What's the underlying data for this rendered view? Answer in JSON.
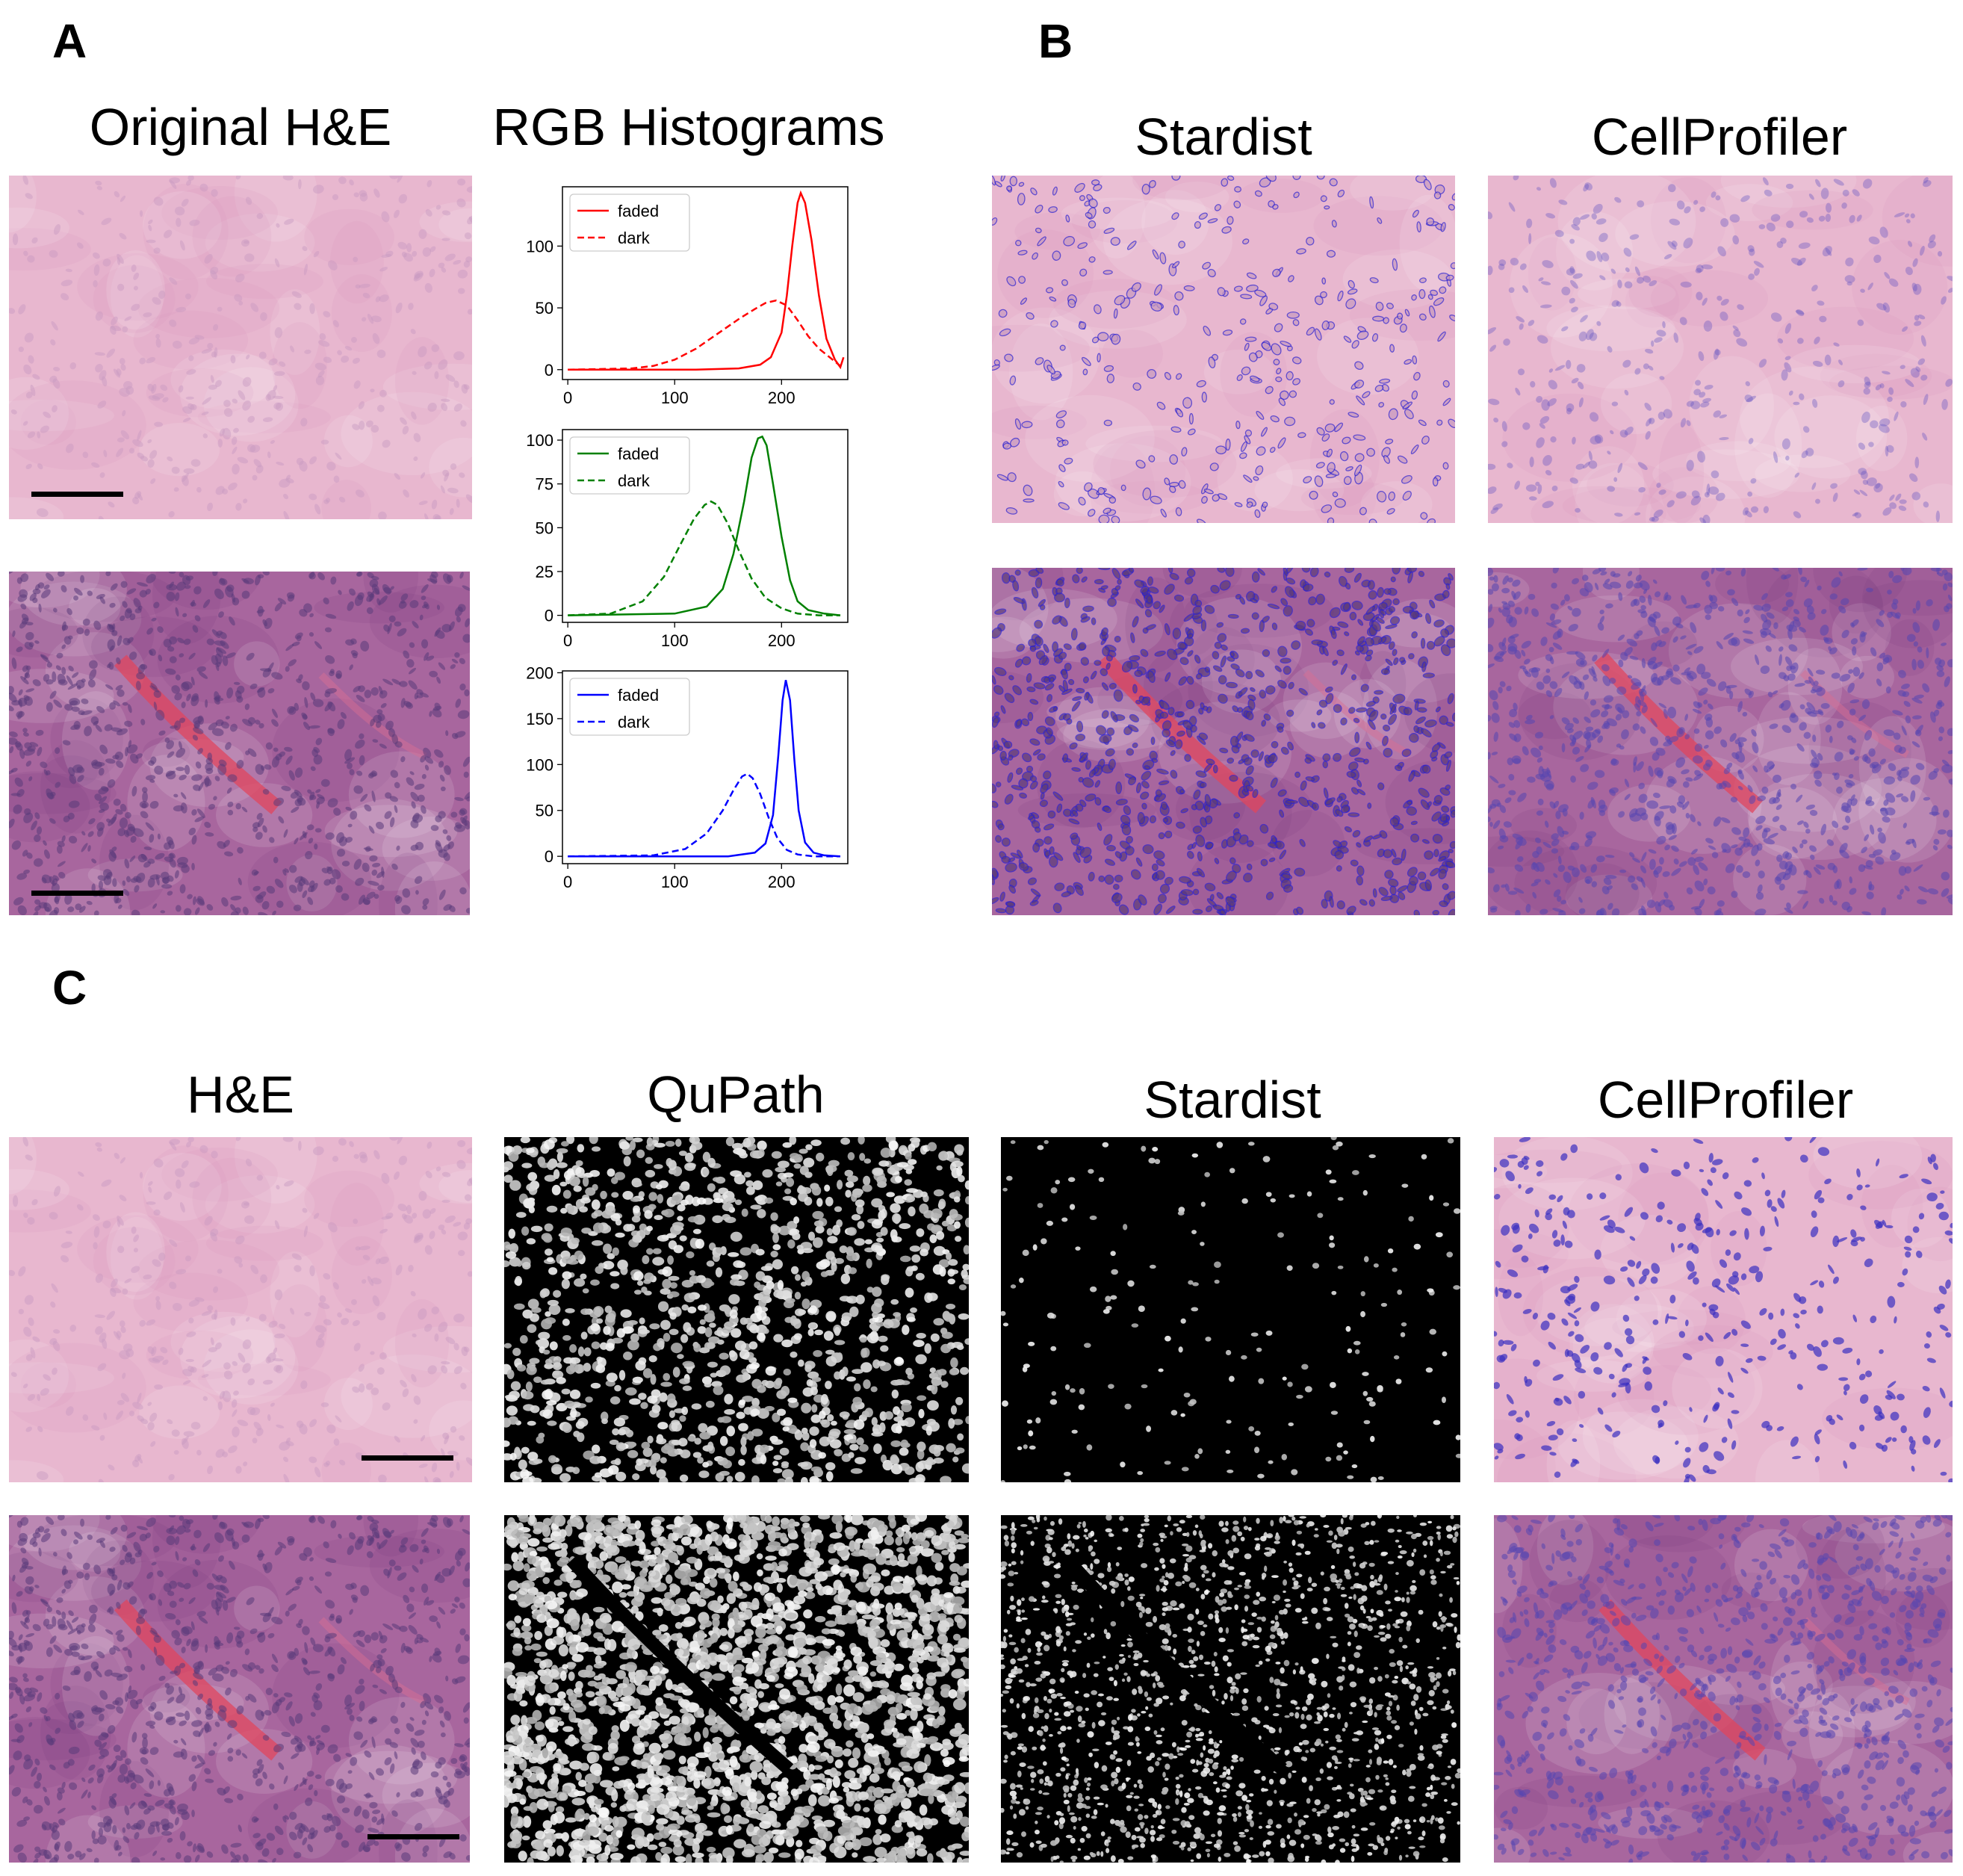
{
  "panels": {
    "A": {
      "letter": "A",
      "titles": [
        "Original H&E",
        "RGB Histograms"
      ]
    },
    "B": {
      "letter": "B",
      "titles": [
        "Stardist",
        "CellProfiler"
      ]
    },
    "C": {
      "letter": "C",
      "titles": [
        "H&E",
        "QuPath",
        "Stardist",
        "CellProfiler"
      ]
    }
  },
  "colors": {
    "he_faded_bg": "#e8b7cf",
    "he_faded_nuclei": "#c79ac0",
    "he_dark_bg": "#a8669e",
    "he_dark_nuclei": "#5a3a7a",
    "he_vessel": "#e0455e",
    "stardist_outline": "#2a20d0",
    "cellprofiler_faded": "#5d4cc0",
    "cellprofiler_dark": "#5546b0",
    "mask_bg": "#000000",
    "mask_fg": "#e8e8e8",
    "red": "#ff0000",
    "green": "#008000",
    "blue": "#0000ff"
  },
  "chart_data": [
    {
      "type": "line",
      "legend_position": "upper-left",
      "xlim": [
        -5,
        262
      ],
      "ylim": [
        -8,
        148
      ],
      "xticks": [
        0,
        100,
        200
      ],
      "yticks": [
        0,
        50,
        100
      ],
      "series": [
        {
          "name": "faded",
          "style": "solid",
          "color": "#ff0000",
          "x": [
            0,
            120,
            160,
            180,
            190,
            200,
            205,
            210,
            215,
            218,
            222,
            228,
            235,
            242,
            250,
            255,
            258
          ],
          "y": [
            0,
            0,
            1,
            4,
            10,
            30,
            60,
            100,
            135,
            143,
            135,
            105,
            60,
            25,
            8,
            2,
            10
          ]
        },
        {
          "name": "dark",
          "style": "dashed",
          "color": "#ff0000",
          "x": [
            0,
            60,
            80,
            100,
            120,
            140,
            160,
            175,
            185,
            195,
            205,
            215,
            225,
            235,
            245,
            255
          ],
          "y": [
            0,
            1,
            3,
            8,
            17,
            29,
            41,
            49,
            54,
            56,
            52,
            40,
            27,
            17,
            10,
            3
          ]
        }
      ]
    },
    {
      "type": "line",
      "legend_position": "upper-left",
      "xlim": [
        -5,
        262
      ],
      "ylim": [
        -4,
        106
      ],
      "xticks": [
        0,
        100,
        200
      ],
      "yticks": [
        0,
        25,
        50,
        75,
        100
      ],
      "series": [
        {
          "name": "faded",
          "style": "solid",
          "color": "#008000",
          "x": [
            0,
            100,
            130,
            145,
            155,
            165,
            172,
            178,
            182,
            186,
            192,
            200,
            208,
            215,
            225,
            240,
            255
          ],
          "y": [
            0,
            1,
            5,
            15,
            35,
            65,
            90,
            101,
            102,
            97,
            75,
            45,
            20,
            8,
            3,
            1,
            0
          ]
        },
        {
          "name": "dark",
          "style": "dashed",
          "color": "#008000",
          "x": [
            0,
            40,
            70,
            90,
            105,
            118,
            128,
            134,
            140,
            150,
            160,
            172,
            185,
            200,
            215,
            235,
            255
          ],
          "y": [
            0,
            1,
            8,
            22,
            40,
            55,
            63,
            65,
            63,
            52,
            37,
            21,
            10,
            4,
            1,
            0,
            0
          ]
        }
      ]
    },
    {
      "type": "line",
      "legend_position": "upper-left",
      "xlim": [
        -5,
        262
      ],
      "ylim": [
        -8,
        202
      ],
      "xticks": [
        0,
        100,
        200
      ],
      "yticks": [
        0,
        50,
        100,
        150,
        200
      ],
      "series": [
        {
          "name": "faded",
          "style": "solid",
          "color": "#0000ff",
          "x": [
            0,
            150,
            175,
            185,
            192,
            197,
            201,
            204,
            208,
            212,
            216,
            222,
            230,
            240,
            255
          ],
          "y": [
            0,
            0,
            4,
            14,
            45,
            110,
            170,
            192,
            170,
            105,
            50,
            15,
            4,
            1,
            0
          ]
        },
        {
          "name": "dark",
          "style": "dashed",
          "color": "#0000ff",
          "x": [
            0,
            80,
            110,
            130,
            145,
            155,
            163,
            168,
            173,
            180,
            188,
            196,
            205,
            215,
            230,
            255
          ],
          "y": [
            0,
            1,
            8,
            25,
            50,
            72,
            87,
            90,
            85,
            68,
            42,
            20,
            7,
            2,
            0,
            0
          ]
        }
      ]
    }
  ]
}
